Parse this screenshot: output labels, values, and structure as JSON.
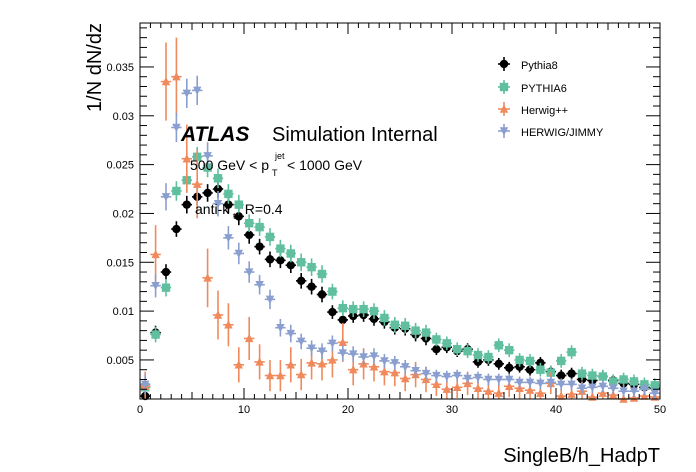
{
  "chart_data": {
    "type": "scatter",
    "xlabel": "SingleB/h_HadpT",
    "ylabel": "1/N dN/dz",
    "xlim": [
      0,
      50
    ],
    "ylim": [
      0.001,
      0.0395
    ],
    "x_ticks": [
      "0",
      "10",
      "20",
      "30",
      "40",
      "50"
    ],
    "y_ticks": [
      "0.005",
      "0.01",
      "0.015",
      "0.02",
      "0.025",
      "0.03",
      "0.035"
    ],
    "grid": false,
    "legend_position": "top-right",
    "annotations": {
      "atlas": "ATLAS",
      "label": "Simulation Internal",
      "pt_prefix": "500 GeV < p",
      "pt_sub": "T",
      "pt_sup": "jet",
      "pt_suffix": "< 1000 GeV",
      "jet_prefix": "anti-k",
      "jet_sub": "t",
      "jet_suffix": ", R=0.4"
    },
    "series": [
      {
        "name": "Pythia8",
        "color": "#000000",
        "marker": "circle",
        "x": [
          0.5,
          1.5,
          2.5,
          3.5,
          4.5,
          5.5,
          6.5,
          7.5,
          8.5,
          9.5,
          10.5,
          11.5,
          12.5,
          13.5,
          14.5,
          15.5,
          16.5,
          17.5,
          18.5,
          19.5,
          20.5,
          21.5,
          22.5,
          23.5,
          24.5,
          25.5,
          26.5,
          27.5,
          28.5,
          29.5,
          30.5,
          31.5,
          32.5,
          33.5,
          34.5,
          35.5,
          36.5,
          37.5,
          38.5,
          39.5,
          40.5,
          41.5,
          42.5,
          43.5,
          44.5,
          45.5,
          46.5,
          47.5,
          48.5,
          49.5
        ],
        "y": [
          0.0013,
          0.0078,
          0.014,
          0.0184,
          0.0209,
          0.0217,
          0.0221,
          0.0225,
          0.0209,
          0.0197,
          0.0178,
          0.0166,
          0.0153,
          0.0152,
          0.0147,
          0.0131,
          0.0125,
          0.0117,
          0.0099,
          0.0091,
          0.0095,
          0.0096,
          0.0092,
          0.0089,
          0.0083,
          0.0082,
          0.0076,
          0.0072,
          0.0061,
          0.0063,
          0.0059,
          0.0061,
          0.0048,
          0.005,
          0.0046,
          0.0042,
          0.0043,
          0.004,
          0.0047,
          0.0038,
          0.0034,
          0.0036,
          0.003,
          0.0029,
          0.0033,
          0.0029,
          0.0026,
          0.0025,
          0.0022,
          0.0021
        ],
        "err": [
          0.0007,
          0.0007,
          0.0008,
          0.0008,
          0.0009,
          0.0009,
          0.0009,
          0.0009,
          0.0009,
          0.0009,
          0.0009,
          0.0008,
          0.0008,
          0.0008,
          0.0008,
          0.0008,
          0.0008,
          0.0008,
          0.0007,
          0.0007,
          0.0007,
          0.0007,
          0.0007,
          0.0007,
          0.0007,
          0.0007,
          0.0007,
          0.0007,
          0.0006,
          0.0006,
          0.0006,
          0.0006,
          0.0006,
          0.0006,
          0.0006,
          0.0006,
          0.0006,
          0.0006,
          0.0006,
          0.0006,
          0.0006,
          0.0006,
          0.0006,
          0.0006,
          0.0006,
          0.0006,
          0.0006,
          0.0006,
          0.0006,
          0.0006
        ]
      },
      {
        "name": "PYTHIA6",
        "color": "#5fbf9f",
        "marker": "square",
        "x": [
          0.5,
          1.5,
          2.5,
          3.5,
          4.5,
          5.5,
          6.5,
          7.5,
          8.5,
          9.5,
          10.5,
          11.5,
          12.5,
          13.5,
          14.5,
          15.5,
          16.5,
          17.5,
          18.5,
          19.5,
          20.5,
          21.5,
          22.5,
          23.5,
          24.5,
          25.5,
          26.5,
          27.5,
          28.5,
          29.5,
          30.5,
          31.5,
          32.5,
          33.5,
          34.5,
          35.5,
          36.5,
          37.5,
          38.5,
          39.5,
          40.5,
          41.5,
          42.5,
          43.5,
          44.5,
          45.5,
          46.5,
          47.5,
          48.5,
          49.5
        ],
        "y": [
          0.0022,
          0.0076,
          0.0124,
          0.0223,
          0.0234,
          0.0258,
          0.0247,
          0.0236,
          0.022,
          0.0209,
          0.019,
          0.0186,
          0.0176,
          0.0164,
          0.0159,
          0.015,
          0.0145,
          0.0138,
          0.012,
          0.0103,
          0.0102,
          0.0102,
          0.01,
          0.0093,
          0.0086,
          0.0085,
          0.008,
          0.0078,
          0.0071,
          0.0067,
          0.0061,
          0.0059,
          0.0055,
          0.0053,
          0.0065,
          0.006,
          0.005,
          0.0049,
          0.004,
          0.0037,
          0.0049,
          0.0058,
          0.0036,
          0.0034,
          0.0033,
          0.0028,
          0.003,
          0.0028,
          0.0025,
          0.0024
        ],
        "err": [
          0.0007,
          0.0008,
          0.0009,
          0.001,
          0.001,
          0.001,
          0.001,
          0.001,
          0.001,
          0.001,
          0.0009,
          0.0009,
          0.0009,
          0.0009,
          0.0009,
          0.0009,
          0.0009,
          0.0009,
          0.0008,
          0.0008,
          0.0008,
          0.0008,
          0.0008,
          0.0008,
          0.0008,
          0.0008,
          0.0008,
          0.0008,
          0.0007,
          0.0007,
          0.0007,
          0.0007,
          0.0007,
          0.0007,
          0.0007,
          0.0007,
          0.0007,
          0.0007,
          0.0007,
          0.0007,
          0.0007,
          0.0007,
          0.0007,
          0.0007,
          0.0007,
          0.0007,
          0.0007,
          0.0007,
          0.0007,
          0.0007
        ]
      },
      {
        "name": "Herwig++",
        "color": "#f08a5d",
        "marker": "triangle-up",
        "x": [
          0.5,
          1.5,
          2.5,
          3.5,
          4.5,
          5.5,
          6.5,
          7.5,
          8.5,
          9.5,
          10.5,
          11.5,
          12.5,
          13.5,
          14.5,
          15.5,
          16.5,
          17.5,
          18.5,
          19.5,
          20.5,
          21.5,
          22.5,
          23.5,
          24.5,
          25.5,
          26.5,
          27.5,
          28.5,
          29.5,
          30.5,
          31.5,
          32.5,
          33.5,
          34.5,
          35.5,
          36.5,
          37.5,
          38.5,
          39.5,
          40.5,
          41.5,
          42.5,
          43.5,
          44.5,
          45.5,
          46.5,
          47.5,
          48.5,
          49.5
        ],
        "y": [
          0.0023,
          0.0158,
          0.0335,
          0.034,
          0.0256,
          0.023,
          0.0134,
          0.0096,
          0.0086,
          0.0045,
          0.0072,
          0.0048,
          0.0034,
          0.0034,
          0.0045,
          0.0035,
          0.0047,
          0.0046,
          0.005,
          0.0068,
          0.004,
          0.0046,
          0.0043,
          0.0038,
          0.0037,
          0.0031,
          0.0035,
          0.003,
          0.0025,
          0.002,
          0.0022,
          0.0026,
          0.0021,
          0.0018,
          0.0016,
          0.0023,
          0.0021,
          0.0019,
          0.0016,
          0.0026,
          0.0013,
          0.0015,
          0.0018,
          0.0012,
          0.0016,
          0.0014,
          0.001,
          0.0011,
          0.0013,
          0.0012
        ],
        "err": [
          0.0015,
          0.003,
          0.004,
          0.004,
          0.0035,
          0.0035,
          0.003,
          0.0025,
          0.0022,
          0.0018,
          0.0022,
          0.0018,
          0.0016,
          0.0016,
          0.0018,
          0.0016,
          0.0017,
          0.0017,
          0.0018,
          0.002,
          0.0016,
          0.0016,
          0.0015,
          0.0014,
          0.0014,
          0.0013,
          0.0013,
          0.0013,
          0.0012,
          0.0011,
          0.0011,
          0.0012,
          0.0011,
          0.001,
          0.001,
          0.0011,
          0.0011,
          0.001,
          0.001,
          0.0011,
          0.0009,
          0.0009,
          0.001,
          0.0009,
          0.0009,
          0.0009,
          0.0008,
          0.0008,
          0.0009,
          0.0008
        ]
      },
      {
        "name": "HERWIG/JIMMY",
        "color": "#8a9fcf",
        "marker": "triangle-down",
        "x": [
          0.5,
          1.5,
          2.5,
          3.5,
          4.5,
          5.5,
          6.5,
          7.5,
          8.5,
          9.5,
          10.5,
          11.5,
          12.5,
          13.5,
          14.5,
          15.5,
          16.5,
          17.5,
          18.5,
          19.5,
          20.5,
          21.5,
          22.5,
          23.5,
          24.5,
          25.5,
          26.5,
          27.5,
          28.5,
          29.5,
          30.5,
          31.5,
          32.5,
          33.5,
          34.5,
          35.5,
          36.5,
          37.5,
          38.5,
          39.5,
          40.5,
          41.5,
          42.5,
          43.5,
          44.5,
          45.5,
          46.5,
          47.5,
          48.5,
          49.5
        ],
        "y": [
          0.0025,
          0.0126,
          0.0217,
          0.0288,
          0.0323,
          0.0326,
          0.0259,
          0.021,
          0.0175,
          0.0159,
          0.014,
          0.0127,
          0.0112,
          0.0083,
          0.0077,
          0.0069,
          0.0062,
          0.0059,
          0.0067,
          0.0057,
          0.0056,
          0.0053,
          0.0054,
          0.0049,
          0.0047,
          0.0043,
          0.0039,
          0.0036,
          0.0034,
          0.0033,
          0.0034,
          0.0031,
          0.0032,
          0.003,
          0.003,
          0.003,
          0.0027,
          0.0027,
          0.0026,
          0.0027,
          0.0025,
          0.0025,
          0.0021,
          0.0022,
          0.0023,
          0.0021,
          0.0018,
          0.0018,
          0.002,
          0.0016
        ],
        "err": [
          0.001,
          0.0012,
          0.0014,
          0.0015,
          0.0015,
          0.0015,
          0.0014,
          0.0013,
          0.0012,
          0.0011,
          0.0011,
          0.001,
          0.001,
          0.0009,
          0.0009,
          0.0008,
          0.0008,
          0.0008,
          0.0008,
          0.0008,
          0.0008,
          0.0008,
          0.0008,
          0.0007,
          0.0007,
          0.0007,
          0.0007,
          0.0007,
          0.0006,
          0.0006,
          0.0006,
          0.0006,
          0.0006,
          0.0006,
          0.0006,
          0.0006,
          0.0006,
          0.0006,
          0.0006,
          0.0006,
          0.0006,
          0.0006,
          0.0006,
          0.0006,
          0.0006,
          0.0006,
          0.0006,
          0.0006,
          0.0006,
          0.0006
        ]
      }
    ]
  }
}
